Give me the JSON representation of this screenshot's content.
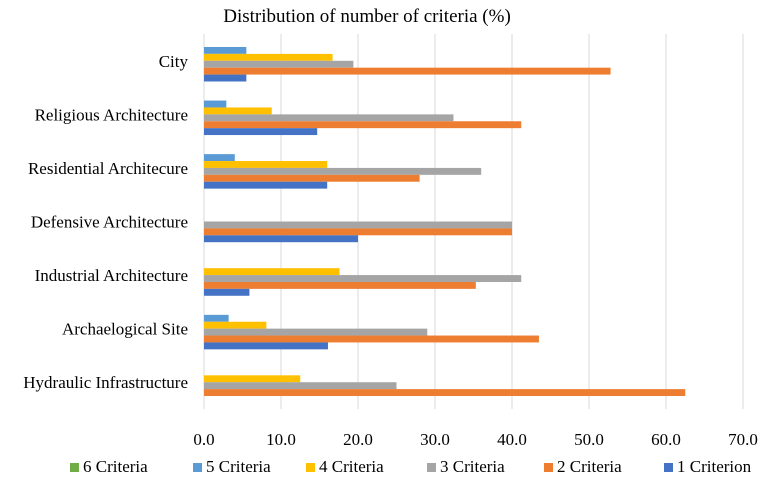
{
  "chart_data": {
    "type": "bar",
    "orientation": "horizontal",
    "title": "Distribution of number of criteria (%)",
    "xlabel": "",
    "ylabel": "",
    "xlim": [
      0,
      70
    ],
    "x_ticks": [
      0,
      10,
      20,
      30,
      40,
      50,
      60,
      70
    ],
    "x_tick_labels": [
      "0.0",
      "10.0",
      "20.0",
      "30.0",
      "40.0",
      "50.0",
      "60.0",
      "70.0"
    ],
    "grid": true,
    "legend_position": "bottom",
    "categories": [
      "City",
      "Religious Architecture",
      "Residential Architecure",
      "Defensive Architecture",
      "Industrial Architecture",
      "Archaelogical Site",
      "Hydraulic Infrastructure"
    ],
    "series": [
      {
        "name": "6 Criteria",
        "color": "#70ad47",
        "values": [
          0,
          0,
          0,
          0,
          0,
          0,
          0
        ]
      },
      {
        "name": "5 Criteria",
        "color": "#5b9bd5",
        "values": [
          5.5,
          2.9,
          4.0,
          0,
          0,
          3.2,
          0
        ]
      },
      {
        "name": "4 Criteria",
        "color": "#ffc000",
        "values": [
          16.7,
          8.8,
          16.0,
          0,
          17.6,
          8.1,
          12.5
        ]
      },
      {
        "name": "3 Criteria",
        "color": "#a5a5a5",
        "values": [
          19.4,
          32.4,
          36.0,
          40.0,
          41.2,
          29.0,
          25.0
        ]
      },
      {
        "name": "2 Criteria",
        "color": "#ed7d31",
        "values": [
          52.8,
          41.2,
          28.0,
          40.0,
          35.3,
          43.5,
          62.5
        ]
      },
      {
        "name": "1 Criterion",
        "color": "#4472c4",
        "values": [
          5.5,
          14.7,
          16.0,
          20.0,
          5.9,
          16.1,
          0
        ]
      }
    ]
  }
}
